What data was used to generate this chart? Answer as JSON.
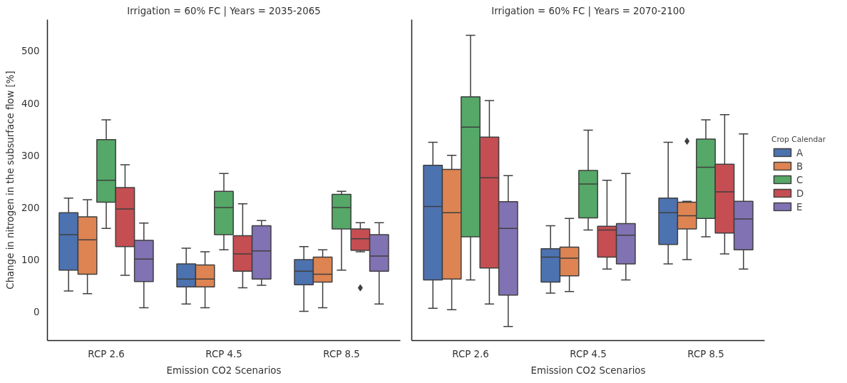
{
  "chart_data": [
    {
      "type": "box",
      "title": "Irrigation = 60% FC | Years = 2035-2065",
      "xlabel": "Emission CO2 Scenarios",
      "ylabel": "Change in nitrogen in the subsurface flow [%]",
      "categories": [
        "RCP 2.6",
        "RCP 4.5",
        "RCP 8.5"
      ],
      "ylim": [
        -55,
        560
      ],
      "yticks": [
        0,
        100,
        200,
        300,
        400,
        500
      ],
      "grid": false,
      "legend": false,
      "marker": "diamond",
      "series": [
        {
          "color": "#4c72b0",
          "boxes": [
            {
              "low": 40,
              "q1": 80,
              "median": 148,
              "q3": 190,
              "high": 218
            },
            {
              "low": 15,
              "q1": 48,
              "median": 63,
              "q3": 92,
              "high": 122
            },
            {
              "low": 1,
              "q1": 52,
              "median": 78,
              "q3": 100,
              "high": 125
            }
          ]
        },
        {
          "color": "#dd8452",
          "boxes": [
            {
              "low": 35,
              "q1": 72,
              "median": 138,
              "q3": 182,
              "high": 215
            },
            {
              "low": 8,
              "q1": 48,
              "median": 63,
              "q3": 90,
              "high": 115
            },
            {
              "low": 8,
              "q1": 57,
              "median": 72,
              "q3": 105,
              "high": 119
            }
          ]
        },
        {
          "color": "#55a868",
          "boxes": [
            {
              "low": 160,
              "q1": 210,
              "median": 252,
              "q3": 330,
              "high": 368
            },
            {
              "low": 119,
              "q1": 148,
              "median": 200,
              "q3": 231,
              "high": 265
            },
            {
              "low": 80,
              "q1": 159,
              "median": 200,
              "q3": 225,
              "high": 231
            }
          ]
        },
        {
          "color": "#c44e52",
          "boxes": [
            {
              "low": 70,
              "q1": 125,
              "median": 197,
              "q3": 238,
              "high": 282
            },
            {
              "low": 46,
              "q1": 78,
              "median": 111,
              "q3": 146,
              "high": 207
            },
            {
              "low": 115,
              "q1": 118,
              "median": 140,
              "q3": 159,
              "high": 171,
              "outliers": [
                46
              ]
            }
          ]
        },
        {
          "color": "#8172b3",
          "boxes": [
            {
              "low": 8,
              "q1": 58,
              "median": 101,
              "q3": 137,
              "high": 170
            },
            {
              "low": 51,
              "q1": 63,
              "median": 117,
              "q3": 165,
              "high": 175
            },
            {
              "low": 15,
              "q1": 78,
              "median": 107,
              "q3": 148,
              "high": 171
            }
          ]
        }
      ]
    },
    {
      "type": "box",
      "title": "Irrigation = 60% FC | Years = 2070-2100",
      "xlabel": "Emission CO2 Scenarios",
      "legend_title": "Crop Calendar",
      "categories": [
        "RCP 2.6",
        "RCP 4.5",
        "RCP 8.5"
      ],
      "ylim": [
        -55,
        560
      ],
      "yticks": [
        0,
        100,
        200,
        300,
        400,
        500
      ],
      "tick_labels": "x",
      "grid": false,
      "legend": "right",
      "marker": "diamond",
      "series": [
        {
          "name": "A",
          "color": "#4c72b0",
          "boxes": [
            {
              "low": 7,
              "q1": 61,
              "median": 202,
              "q3": 281,
              "high": 325
            },
            {
              "low": 36,
              "q1": 57,
              "median": 105,
              "q3": 121,
              "high": 165
            },
            {
              "low": 92,
              "q1": 129,
              "median": 190,
              "q3": 218,
              "high": 325
            }
          ]
        },
        {
          "name": "B",
          "color": "#dd8452",
          "boxes": [
            {
              "low": 4,
              "q1": 63,
              "median": 190,
              "q3": 273,
              "high": 300
            },
            {
              "low": 39,
              "q1": 69,
              "median": 103,
              "q3": 124,
              "high": 179
            },
            {
              "low": 100,
              "q1": 159,
              "median": 184,
              "q3": 210,
              "high": 212,
              "outliers": [
                327
              ]
            }
          ]
        },
        {
          "name": "C",
          "color": "#55a868",
          "boxes": [
            {
              "low": 61,
              "q1": 144,
              "median": 354,
              "q3": 412,
              "high": 530
            },
            {
              "low": 157,
              "q1": 180,
              "median": 245,
              "q3": 271,
              "high": 348
            },
            {
              "low": 144,
              "q1": 179,
              "median": 277,
              "q3": 331,
              "high": 368
            }
          ]
        },
        {
          "name": "D",
          "color": "#c44e52",
          "boxes": [
            {
              "low": 15,
              "q1": 84,
              "median": 257,
              "q3": 335,
              "high": 405
            },
            {
              "low": 82,
              "q1": 105,
              "median": 157,
              "q3": 164,
              "high": 252
            },
            {
              "low": 111,
              "q1": 151,
              "median": 230,
              "q3": 283,
              "high": 378
            }
          ]
        },
        {
          "name": "E",
          "color": "#8172b3",
          "boxes": [
            {
              "low": -28,
              "q1": 32,
              "median": 160,
              "q3": 211,
              "high": 261
            },
            {
              "low": 61,
              "q1": 92,
              "median": 147,
              "q3": 169,
              "high": 265
            },
            {
              "low": 82,
              "q1": 119,
              "median": 178,
              "q3": 212,
              "high": 341
            }
          ]
        }
      ]
    }
  ]
}
